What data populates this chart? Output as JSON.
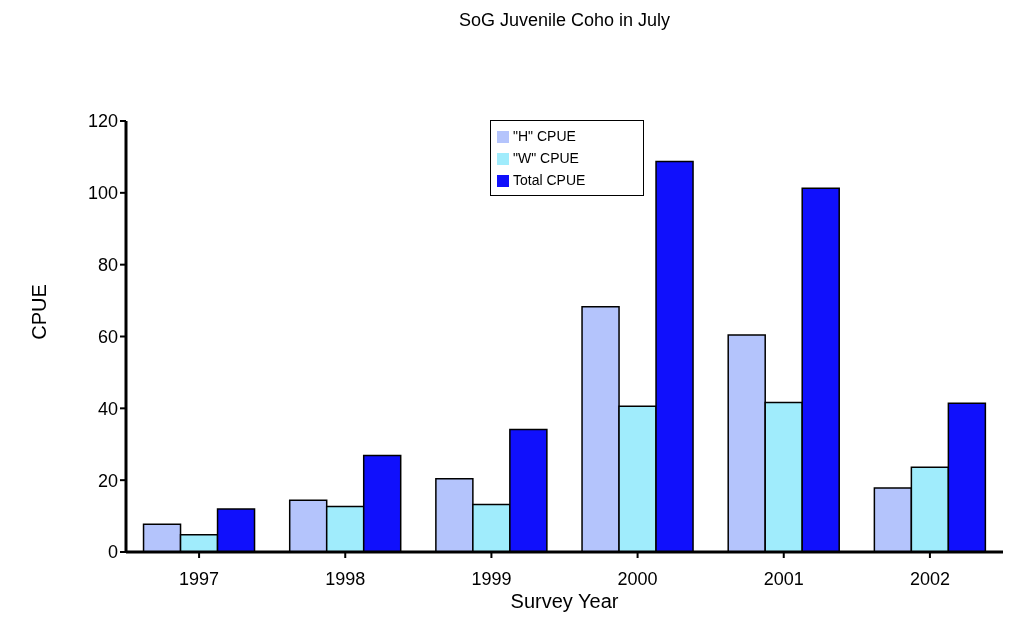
{
  "chart_data": {
    "type": "bar",
    "title": "SoG Juvenile Coho in July",
    "xlabel": "Survey Year",
    "ylabel": "CPUE",
    "categories": [
      "1997",
      "1998",
      "1999",
      "2000",
      "2001",
      "2002"
    ],
    "series": [
      {
        "name": "\"H\" CPUE",
        "color": "#b4c4fc",
        "values": [
          7.7,
          14.4,
          20.4,
          68.3,
          60.4,
          17.8
        ]
      },
      {
        "name": "\"W\" CPUE",
        "color": "#a0ecfc",
        "values": [
          4.8,
          12.7,
          13.2,
          40.6,
          41.6,
          23.6
        ]
      },
      {
        "name": "Total CPUE",
        "color": "#1010fc",
        "values": [
          12.0,
          26.9,
          34.1,
          108.7,
          101.3,
          41.4
        ]
      }
    ],
    "ylim": [
      0,
      120
    ],
    "yticks": [
      0,
      20,
      40,
      60,
      80,
      100,
      120
    ],
    "grid": false,
    "legend": "top"
  }
}
